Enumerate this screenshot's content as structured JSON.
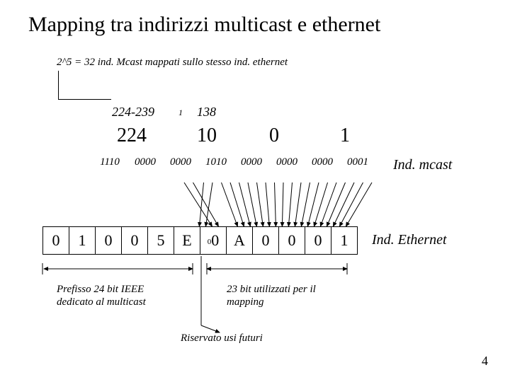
{
  "title": "Mapping tra indirizzi multicast e ethernet",
  "subtitle": "2^5 = 32 ind. Mcast mappati sullo stesso ind. ethernet",
  "decLabels": {
    "range": "224-239",
    "one": "1",
    "v": "138"
  },
  "bigDec": {
    "a": "224",
    "b": "10",
    "c": "0",
    "d": "1"
  },
  "bin": [
    "1110",
    "0000",
    "0000",
    "1010",
    "0000",
    "0000",
    "0000",
    "0001"
  ],
  "eth": [
    "0",
    "1",
    "0",
    "0",
    "5",
    "E",
    "0",
    "A",
    "0",
    "0",
    "0",
    "1"
  ],
  "ethSmallZero": "0",
  "labels": {
    "mcast": "Ind. mcast",
    "ethernet": "Ind. Ethernet"
  },
  "note1a": "Prefisso 24 bit IEEE",
  "note1b": "dedicato al multicast",
  "note2a": "23 bit utilizzati per il",
  "note2b": "mapping",
  "footer": "Riservato usi futuri",
  "page": "4",
  "geom": {
    "binLeft": 130,
    "binCellW": 50,
    "binTop": 220,
    "ethLeft": 60,
    "ethCellW": 36,
    "ethTop": 320,
    "arrowTopY": 240,
    "arrowBotY": 320
  },
  "arrowMap": [
    [
      2,
      6
    ],
    [
      3,
      6
    ],
    [
      3,
      7
    ],
    [
      4,
      8
    ],
    [
      4,
      8
    ],
    [
      5,
      9
    ],
    [
      5,
      9
    ],
    [
      6,
      10
    ],
    [
      6,
      10
    ],
    [
      7,
      11
    ],
    [
      7,
      11
    ]
  ],
  "colors": {
    "line": "#000000",
    "bg": "#ffffff"
  }
}
